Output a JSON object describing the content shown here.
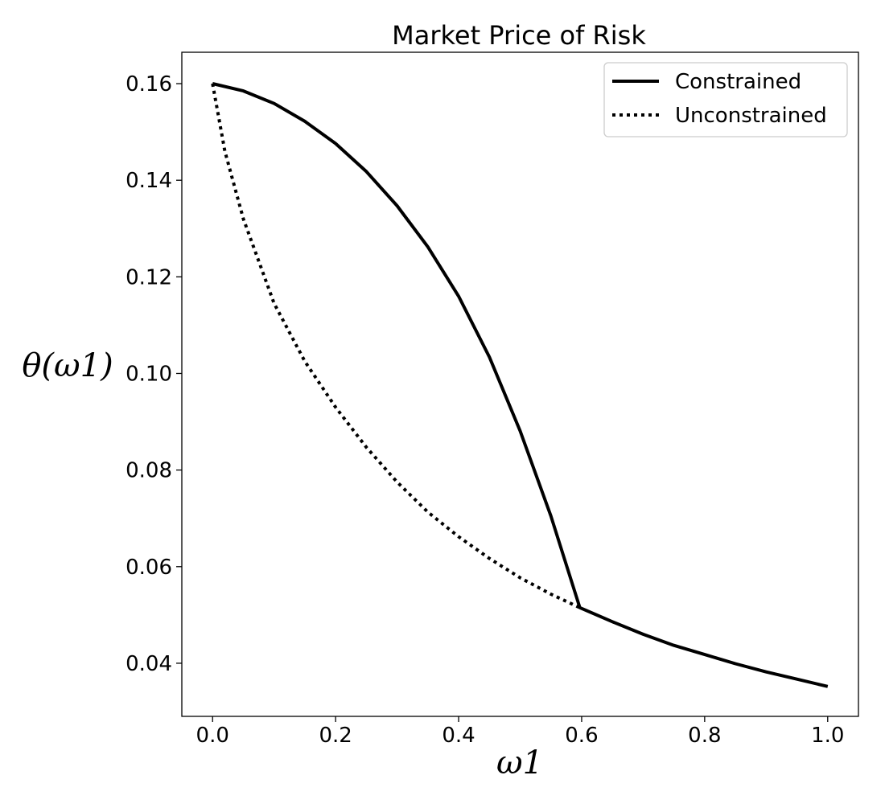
{
  "chart_data": {
    "type": "line",
    "title": "Market Price of Risk",
    "xlabel": "ω1",
    "ylabel": "θ(ω1)",
    "xlim": [
      -0.05,
      1.05
    ],
    "ylim": [
      0.029,
      0.1665
    ],
    "xticks": [
      "0.0",
      "0.2",
      "0.4",
      "0.6",
      "0.8",
      "1.0"
    ],
    "yticks": [
      "0.04",
      "0.06",
      "0.08",
      "0.10",
      "0.12",
      "0.14",
      "0.16"
    ],
    "grid": false,
    "legend_position": "top-right",
    "series": [
      {
        "name": "Constrained",
        "style": "solid",
        "color": "#000000",
        "x": [
          0.0,
          0.05,
          0.1,
          0.15,
          0.2,
          0.25,
          0.3,
          0.35,
          0.4,
          0.45,
          0.5,
          0.55,
          0.597,
          0.65,
          0.7,
          0.75,
          0.8,
          0.85,
          0.9,
          0.95,
          1.0
        ],
        "y": [
          0.16,
          0.1585,
          0.1559,
          0.1522,
          0.1476,
          0.1418,
          0.1347,
          0.1262,
          0.116,
          0.1034,
          0.0881,
          0.0705,
          0.0515,
          0.0486,
          0.046,
          0.0437,
          0.0418,
          0.0399,
          0.0382,
          0.0367,
          0.0352
        ]
      },
      {
        "name": "Unconstrained",
        "style": "dotted",
        "color": "#000000",
        "x": [
          0.0,
          0.02,
          0.05,
          0.1,
          0.15,
          0.2,
          0.25,
          0.3,
          0.35,
          0.4,
          0.45,
          0.5,
          0.55,
          0.597
        ],
        "y": [
          0.16,
          0.146,
          0.132,
          0.1145,
          0.1025,
          0.093,
          0.0847,
          0.0775,
          0.0713,
          0.0662,
          0.0617,
          0.0577,
          0.0543,
          0.0515
        ]
      }
    ]
  }
}
